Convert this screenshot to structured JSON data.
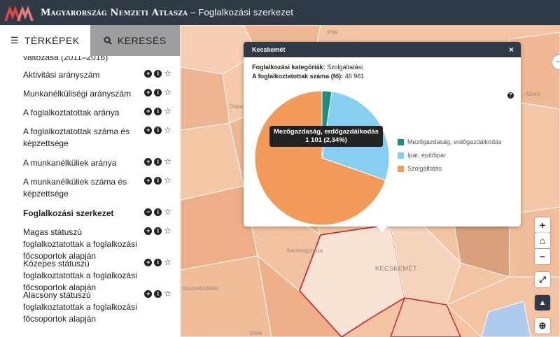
{
  "header": {
    "brand": "Magyarország Nemzeti Atlasza",
    "separator": " – ",
    "page": "Foglalkozási szerkezet"
  },
  "tabs": [
    {
      "label": "TÉRKÉPEK",
      "icon": "layers-icon",
      "active": true
    },
    {
      "label": "KERESÉS",
      "icon": "search-icon",
      "active": false
    }
  ],
  "list_items": [
    {
      "label": "változása (2011–2016)",
      "bold": false,
      "actions": false
    },
    {
      "label": "Aktivitási arányszám",
      "bold": false,
      "actions": true,
      "expand": "+"
    },
    {
      "label": "Munkanélküliségi arányszám",
      "bold": false,
      "actions": true,
      "expand": "+"
    },
    {
      "label": "A foglalkoztatottak aránya",
      "bold": false,
      "actions": true,
      "expand": "+"
    },
    {
      "label": "A foglalkoztatottak száma és képzettsége",
      "bold": false,
      "actions": true,
      "expand": "+"
    },
    {
      "label": "A munkanélküliek aránya",
      "bold": false,
      "actions": true,
      "expand": "+"
    },
    {
      "label": "A munkanélküliek száma és képzettsége",
      "bold": false,
      "actions": true,
      "expand": "+"
    },
    {
      "label": "Foglalkozási szerkezet",
      "bold": true,
      "actions": true,
      "expand": "−"
    },
    {
      "label": "Magas státuszú foglalkoztatottak a foglalkozási főcsoportok alapján",
      "bold": false,
      "actions": true,
      "expand": "+"
    },
    {
      "label": "Közepes státuszú foglalkoztatottak a foglalkozási főcsoportok alapján",
      "bold": false,
      "actions": true,
      "expand": "+"
    },
    {
      "label": "Alacsony státuszú foglalkoztatottak a foglalkozási főcsoportok alapján",
      "bold": false,
      "actions": true,
      "expand": "+"
    }
  ],
  "info_glyph": "i",
  "star_glyph": "☆",
  "popup": {
    "title": "Kecskemét",
    "close": "×",
    "category_label": "Foglalkozási kategóriák:",
    "category_value": "Szolgáltatási",
    "count_label": "A foglalkoztatottak száma (fő):",
    "count_value": "46 961",
    "help": "?",
    "tooltip_line1": "Mezőgazdaság, erdőgazdálkodás",
    "tooltip_line2": "1 101 (2,34%)",
    "colors": {
      "agri": "#1e8c7e",
      "industry": "#87cff2",
      "services": "#f29a5a"
    }
  },
  "chart_data": {
    "type": "pie",
    "categories": [
      "Mezőgazdaság, erdőgazdálkodás",
      "Ipar, építőipar",
      "Szolgáltatás"
    ],
    "values": [
      2.34,
      28.0,
      69.66
    ],
    "unit": "%",
    "annotations": [
      "Mezőgazdaság, erdőgazdálkodás",
      "1 101 (2,34%)"
    ]
  },
  "map": {
    "labels": [
      "Pilis",
      "Dabas",
      "Kerekegyháza",
      "KECSKEMÉT",
      "Izsák",
      "Szabadszállás",
      "Abony"
    ]
  },
  "controls": [
    "+",
    "⌂",
    "−",
    "⤢",
    "▲",
    "⊕"
  ],
  "edge_button": "−"
}
